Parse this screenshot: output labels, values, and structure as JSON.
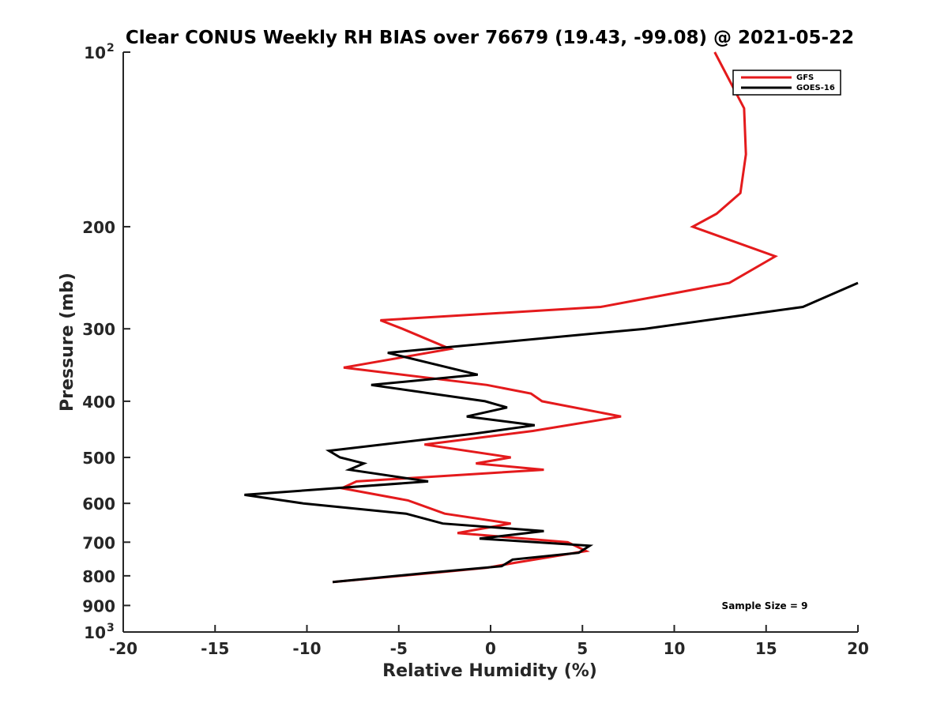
{
  "chart_data": {
    "type": "line",
    "title": "Clear CONUS Weekly RH BIAS over 76679 (19.43, -99.08) @ 2021-05-22",
    "xlabel": "Relative Humidity (%)",
    "ylabel": "Pressure (mb)",
    "xlim": [
      -20,
      20
    ],
    "ylim": [
      100,
      1000
    ],
    "y_scale": "log",
    "y_reversed": true,
    "grid": false,
    "legend_position": "top-right",
    "x_ticks": [
      "-20",
      "-15",
      "-10",
      "-5",
      "0",
      "5",
      "10",
      "15",
      "20"
    ],
    "y_ticks": [
      {
        "value": 100,
        "label": "10",
        "sup": "2"
      },
      {
        "value": 200,
        "label": "200",
        "sup": ""
      },
      {
        "value": 300,
        "label": "300",
        "sup": ""
      },
      {
        "value": 400,
        "label": "400",
        "sup": ""
      },
      {
        "value": 500,
        "label": "500",
        "sup": ""
      },
      {
        "value": 600,
        "label": "600",
        "sup": ""
      },
      {
        "value": 700,
        "label": "700",
        "sup": ""
      },
      {
        "value": 800,
        "label": "800",
        "sup": ""
      },
      {
        "value": 900,
        "label": "900",
        "sup": ""
      },
      {
        "value": 1000,
        "label": "10",
        "sup": "3"
      }
    ],
    "series": [
      {
        "name": "GFS",
        "color": "#e41a1c",
        "points": [
          [
            12.2,
            100
          ],
          [
            13.8,
            125
          ],
          [
            13.9,
            150
          ],
          [
            13.6,
            175
          ],
          [
            12.3,
            190
          ],
          [
            11.0,
            200
          ],
          [
            15.5,
            225
          ],
          [
            13.0,
            250
          ],
          [
            6.0,
            275
          ],
          [
            -6.0,
            290
          ],
          [
            -4.8,
            300
          ],
          [
            -2.2,
            325
          ],
          [
            -8.0,
            350
          ],
          [
            -0.2,
            375
          ],
          [
            2.2,
            388
          ],
          [
            2.8,
            400
          ],
          [
            7.1,
            425
          ],
          [
            2.3,
            450
          ],
          [
            -3.6,
            475
          ],
          [
            1.1,
            500
          ],
          [
            -0.8,
            512
          ],
          [
            2.9,
            525
          ],
          [
            -7.3,
            550
          ],
          [
            -8.1,
            565
          ],
          [
            -4.5,
            593
          ],
          [
            -2.5,
            625
          ],
          [
            1.1,
            650
          ],
          [
            -1.8,
            675
          ],
          [
            4.2,
            700
          ],
          [
            5.2,
            725
          ],
          [
            1.3,
            760
          ],
          [
            -0.2,
            775
          ],
          [
            -3.0,
            790
          ],
          [
            -8.6,
            820
          ]
        ]
      },
      {
        "name": "GOES-16",
        "color": "#000000",
        "points": [
          [
            20.0,
            250
          ],
          [
            17.0,
            275
          ],
          [
            8.4,
            300
          ],
          [
            -5.6,
            330
          ],
          [
            -0.7,
            360
          ],
          [
            -6.5,
            375
          ],
          [
            -0.3,
            400
          ],
          [
            0.9,
            410
          ],
          [
            -1.3,
            425
          ],
          [
            2.4,
            440
          ],
          [
            -0.9,
            455
          ],
          [
            -8.8,
            487
          ],
          [
            -8.2,
            500
          ],
          [
            -6.9,
            512
          ],
          [
            -7.7,
            525
          ],
          [
            -3.4,
            550
          ],
          [
            -13.4,
            580
          ],
          [
            -10.2,
            600
          ],
          [
            -4.6,
            625
          ],
          [
            -2.6,
            650
          ],
          [
            2.9,
            670
          ],
          [
            -0.6,
            690
          ],
          [
            5.4,
            710
          ],
          [
            4.8,
            730
          ],
          [
            1.2,
            750
          ],
          [
            0.6,
            770
          ],
          [
            -3.3,
            790
          ],
          [
            -8.6,
            820
          ]
        ]
      }
    ],
    "annotation": "Sample Size = 9"
  }
}
